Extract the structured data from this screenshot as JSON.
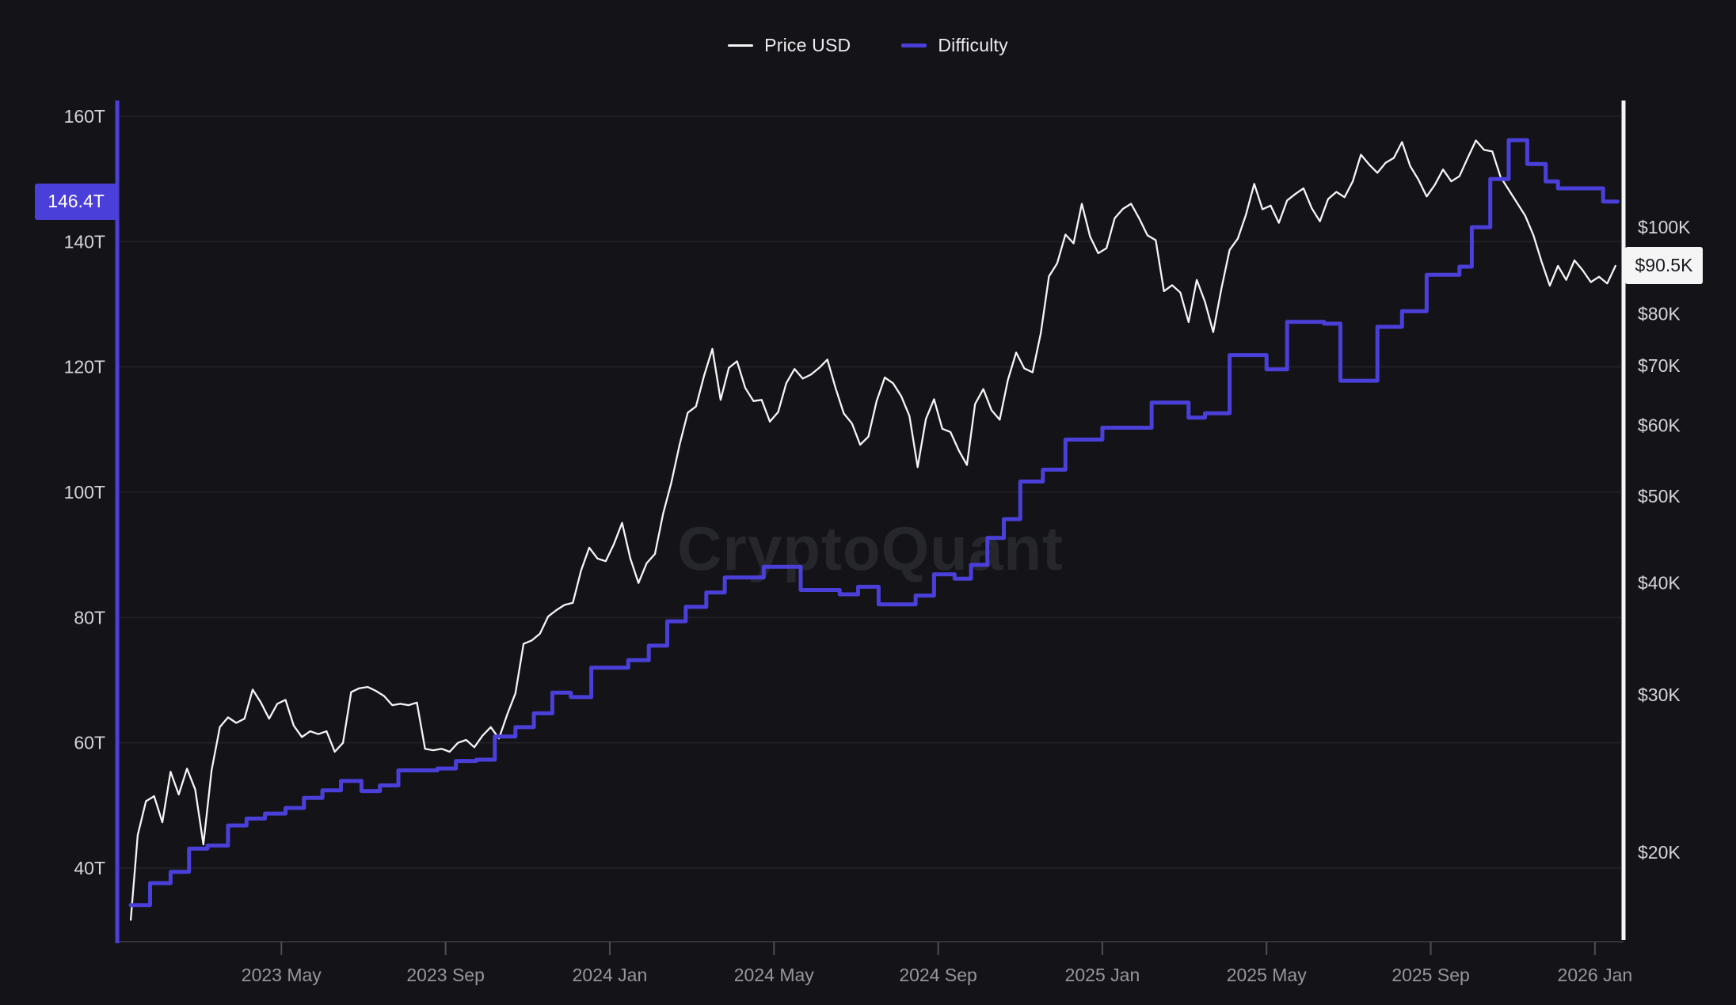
{
  "colors": {
    "background": "#141418",
    "gridline": "#222228",
    "axis_baseline": "#31313a",
    "tick_mark": "#4d4d55",
    "x_label": "#95959c",
    "y_label": "#d4d4d9",
    "price_line": "#f5f5f7",
    "difficulty_line": "#4b3fd9",
    "difficulty_badge_bg": "#4b3fd9",
    "difficulty_badge_text": "#ffffff",
    "price_badge_bg": "#f5f5f6",
    "price_badge_text": "#1b1b1f",
    "watermark": "#26262d"
  },
  "chart_data": {
    "type": "line",
    "watermark": "CryptoQuant",
    "legend_position": "top-center",
    "grid": "horizontal-left-axis-only",
    "x_axis": {
      "unit": "month-index from 2023 Jan",
      "range": [
        0,
        36.7
      ],
      "ticks": [
        {
          "t": 4,
          "label": "2023 May"
        },
        {
          "t": 8,
          "label": "2023 Sep"
        },
        {
          "t": 12,
          "label": "2024 Jan"
        },
        {
          "t": 16,
          "label": "2024 May"
        },
        {
          "t": 20,
          "label": "2024 Sep"
        },
        {
          "t": 24,
          "label": "2025 Jan"
        },
        {
          "t": 28,
          "label": "2025 May"
        },
        {
          "t": 32,
          "label": "2025 Sep"
        },
        {
          "t": 36,
          "label": "2026 Jan"
        }
      ]
    },
    "left_axis": {
      "title": "Difficulty",
      "scale": "linear",
      "unit": "T",
      "range": [
        28,
        162
      ],
      "ticks": [
        {
          "v": 160,
          "label": "160T"
        },
        {
          "v": 140,
          "label": "140T"
        },
        {
          "v": 120,
          "label": "120T"
        },
        {
          "v": 100,
          "label": "100T"
        },
        {
          "v": 80,
          "label": "80T"
        },
        {
          "v": 60,
          "label": "60T"
        },
        {
          "v": 40,
          "label": "40T"
        }
      ]
    },
    "right_axis": {
      "title": "Price USD",
      "scale": "log",
      "unit": "$K",
      "range": [
        16,
        135
      ],
      "ticks": [
        {
          "v": 100,
          "label": "$100K"
        },
        {
          "v": 80,
          "label": "$80K"
        },
        {
          "v": 70,
          "label": "$70K"
        },
        {
          "v": 60,
          "label": "$60K"
        },
        {
          "v": 50,
          "label": "$50K"
        },
        {
          "v": 40,
          "label": "$40K"
        },
        {
          "v": 30,
          "label": "$30K"
        },
        {
          "v": 20,
          "label": "$20K"
        }
      ]
    },
    "last_values": {
      "difficulty_label": "146.4T",
      "difficulty_value": 146.4,
      "price_label": "$90.5K",
      "price_value": 90.5
    },
    "series": [
      {
        "name": "Price USD",
        "axis": "right",
        "style": "line",
        "color": "#f5f5f7",
        "points": [
          [
            0.33,
            16.8
          ],
          [
            0.5,
            20.9
          ],
          [
            0.7,
            22.8
          ],
          [
            0.9,
            23.1
          ],
          [
            1.1,
            21.6
          ],
          [
            1.3,
            24.6
          ],
          [
            1.5,
            23.2
          ],
          [
            1.7,
            24.8
          ],
          [
            1.9,
            23.5
          ],
          [
            2.1,
            20.4
          ],
          [
            2.3,
            24.7
          ],
          [
            2.5,
            27.6
          ],
          [
            2.7,
            28.3
          ],
          [
            2.9,
            27.9
          ],
          [
            3.1,
            28.2
          ],
          [
            3.3,
            30.4
          ],
          [
            3.5,
            29.4
          ],
          [
            3.7,
            28.2
          ],
          [
            3.9,
            29.3
          ],
          [
            4.1,
            29.6
          ],
          [
            4.3,
            27.7
          ],
          [
            4.5,
            26.9
          ],
          [
            4.7,
            27.3
          ],
          [
            4.9,
            27.1
          ],
          [
            5.1,
            27.3
          ],
          [
            5.3,
            25.9
          ],
          [
            5.5,
            26.5
          ],
          [
            5.7,
            30.2
          ],
          [
            5.9,
            30.5
          ],
          [
            6.1,
            30.6
          ],
          [
            6.3,
            30.3
          ],
          [
            6.5,
            29.9
          ],
          [
            6.7,
            29.2
          ],
          [
            6.9,
            29.3
          ],
          [
            7.1,
            29.2
          ],
          [
            7.3,
            29.4
          ],
          [
            7.5,
            26.1
          ],
          [
            7.7,
            26.0
          ],
          [
            7.9,
            26.1
          ],
          [
            8.1,
            25.9
          ],
          [
            8.3,
            26.5
          ],
          [
            8.5,
            26.7
          ],
          [
            8.7,
            26.2
          ],
          [
            8.9,
            27.0
          ],
          [
            9.1,
            27.6
          ],
          [
            9.3,
            26.8
          ],
          [
            9.5,
            28.5
          ],
          [
            9.7,
            30.1
          ],
          [
            9.9,
            34.2
          ],
          [
            10.1,
            34.5
          ],
          [
            10.3,
            35.1
          ],
          [
            10.5,
            36.7
          ],
          [
            10.7,
            37.3
          ],
          [
            10.9,
            37.8
          ],
          [
            11.1,
            38.0
          ],
          [
            11.3,
            41.3
          ],
          [
            11.5,
            43.8
          ],
          [
            11.7,
            42.6
          ],
          [
            11.9,
            42.3
          ],
          [
            12.1,
            44.2
          ],
          [
            12.3,
            46.7
          ],
          [
            12.5,
            42.6
          ],
          [
            12.7,
            40.0
          ],
          [
            12.9,
            42.1
          ],
          [
            13.1,
            43.1
          ],
          [
            13.3,
            47.8
          ],
          [
            13.5,
            51.8
          ],
          [
            13.7,
            57.1
          ],
          [
            13.9,
            62.0
          ],
          [
            14.1,
            63.0
          ],
          [
            14.3,
            68.3
          ],
          [
            14.5,
            73.1
          ],
          [
            14.7,
            64.1
          ],
          [
            14.9,
            69.6
          ],
          [
            15.1,
            70.8
          ],
          [
            15.3,
            66.1
          ],
          [
            15.5,
            63.9
          ],
          [
            15.7,
            64.1
          ],
          [
            15.9,
            60.6
          ],
          [
            16.1,
            62.1
          ],
          [
            16.3,
            66.9
          ],
          [
            16.5,
            69.4
          ],
          [
            16.7,
            67.7
          ],
          [
            16.9,
            68.4
          ],
          [
            17.1,
            69.6
          ],
          [
            17.3,
            71.1
          ],
          [
            17.5,
            66.1
          ],
          [
            17.7,
            61.9
          ],
          [
            17.9,
            60.3
          ],
          [
            18.1,
            57.1
          ],
          [
            18.3,
            58.3
          ],
          [
            18.5,
            63.9
          ],
          [
            18.7,
            67.9
          ],
          [
            18.9,
            66.9
          ],
          [
            19.1,
            64.7
          ],
          [
            19.3,
            61.5
          ],
          [
            19.5,
            53.9
          ],
          [
            19.7,
            61.0
          ],
          [
            19.9,
            64.2
          ],
          [
            20.1,
            59.5
          ],
          [
            20.3,
            59.0
          ],
          [
            20.5,
            56.3
          ],
          [
            20.7,
            54.2
          ],
          [
            20.9,
            63.4
          ],
          [
            21.1,
            65.9
          ],
          [
            21.3,
            62.4
          ],
          [
            21.5,
            60.9
          ],
          [
            21.7,
            67.5
          ],
          [
            21.9,
            72.4
          ],
          [
            22.1,
            69.5
          ],
          [
            22.3,
            68.8
          ],
          [
            22.5,
            76.1
          ],
          [
            22.7,
            88.1
          ],
          [
            22.9,
            91.1
          ],
          [
            23.1,
            98.1
          ],
          [
            23.3,
            95.9
          ],
          [
            23.5,
            106.2
          ],
          [
            23.7,
            97.6
          ],
          [
            23.9,
            93.5
          ],
          [
            24.1,
            94.7
          ],
          [
            24.3,
            102.3
          ],
          [
            24.5,
            104.8
          ],
          [
            24.7,
            106.2
          ],
          [
            24.9,
            102.2
          ],
          [
            25.1,
            97.9
          ],
          [
            25.3,
            96.7
          ],
          [
            25.5,
            84.8
          ],
          [
            25.7,
            86.1
          ],
          [
            25.9,
            84.5
          ],
          [
            26.1,
            78.3
          ],
          [
            26.3,
            87.3
          ],
          [
            26.5,
            82.5
          ],
          [
            26.7,
            76.3
          ],
          [
            26.9,
            85.3
          ],
          [
            27.1,
            94.3
          ],
          [
            27.3,
            97.1
          ],
          [
            27.5,
            103.3
          ],
          [
            27.7,
            111.8
          ],
          [
            27.9,
            104.7
          ],
          [
            28.1,
            105.7
          ],
          [
            28.3,
            101.1
          ],
          [
            28.5,
            107.1
          ],
          [
            28.7,
            108.9
          ],
          [
            28.9,
            110.5
          ],
          [
            29.1,
            105.0
          ],
          [
            29.3,
            101.5
          ],
          [
            29.5,
            107.5
          ],
          [
            29.7,
            109.5
          ],
          [
            29.9,
            108.0
          ],
          [
            30.1,
            112.5
          ],
          [
            30.3,
            120.5
          ],
          [
            30.5,
            117.5
          ],
          [
            30.7,
            115.0
          ],
          [
            30.9,
            118.0
          ],
          [
            31.1,
            119.5
          ],
          [
            31.3,
            124.5
          ],
          [
            31.5,
            117.0
          ],
          [
            31.7,
            113.0
          ],
          [
            31.9,
            108.2
          ],
          [
            32.1,
            111.5
          ],
          [
            32.3,
            116.0
          ],
          [
            32.5,
            112.5
          ],
          [
            32.7,
            114.0
          ],
          [
            32.9,
            119.5
          ],
          [
            33.1,
            125.0
          ],
          [
            33.3,
            122.0
          ],
          [
            33.5,
            121.5
          ],
          [
            33.7,
            113.8
          ],
          [
            33.9,
            110.1
          ],
          [
            34.1,
            106.5
          ],
          [
            34.3,
            103.0
          ],
          [
            34.5,
            98.0
          ],
          [
            34.7,
            91.5
          ],
          [
            34.9,
            86.0
          ],
          [
            35.1,
            90.5
          ],
          [
            35.3,
            87.3
          ],
          [
            35.5,
            91.8
          ],
          [
            35.7,
            89.5
          ],
          [
            35.9,
            86.8
          ],
          [
            36.1,
            88.0
          ],
          [
            36.3,
            86.5
          ],
          [
            36.5,
            90.5
          ]
        ]
      },
      {
        "name": "Difficulty",
        "axis": "left",
        "style": "step-after",
        "color": "#4b3fd9",
        "points": [
          [
            0.33,
            34.1
          ],
          [
            0.8,
            37.6
          ],
          [
            1.3,
            39.4
          ],
          [
            1.75,
            43.1
          ],
          [
            2.2,
            43.6
          ],
          [
            2.7,
            46.8
          ],
          [
            3.15,
            47.9
          ],
          [
            3.6,
            48.7
          ],
          [
            4.1,
            49.6
          ],
          [
            4.55,
            51.2
          ],
          [
            5.0,
            52.4
          ],
          [
            5.45,
            53.9
          ],
          [
            5.95,
            52.3
          ],
          [
            6.4,
            53.2
          ],
          [
            6.85,
            55.6
          ],
          [
            7.8,
            55.9
          ],
          [
            8.25,
            57.1
          ],
          [
            8.75,
            57.3
          ],
          [
            9.2,
            61.0
          ],
          [
            9.7,
            62.5
          ],
          [
            10.15,
            64.7
          ],
          [
            10.6,
            68.0
          ],
          [
            11.05,
            67.3
          ],
          [
            11.55,
            72.0
          ],
          [
            12.45,
            73.2
          ],
          [
            12.95,
            75.5
          ],
          [
            13.4,
            79.4
          ],
          [
            13.85,
            81.7
          ],
          [
            14.35,
            84.0
          ],
          [
            14.8,
            86.4
          ],
          [
            15.75,
            88.1
          ],
          [
            16.65,
            84.4
          ],
          [
            17.6,
            83.7
          ],
          [
            18.05,
            84.9
          ],
          [
            18.55,
            82.1
          ],
          [
            19.45,
            83.5
          ],
          [
            19.9,
            86.9
          ],
          [
            20.4,
            86.2
          ],
          [
            20.8,
            88.4
          ],
          [
            21.2,
            92.7
          ],
          [
            21.6,
            95.7
          ],
          [
            22.0,
            101.7
          ],
          [
            22.55,
            103.6
          ],
          [
            23.1,
            108.4
          ],
          [
            24.0,
            110.3
          ],
          [
            25.2,
            114.3
          ],
          [
            26.1,
            111.9
          ],
          [
            26.5,
            112.6
          ],
          [
            27.1,
            121.9
          ],
          [
            28.0,
            119.6
          ],
          [
            28.5,
            127.2
          ],
          [
            29.4,
            126.9
          ],
          [
            29.8,
            117.8
          ],
          [
            30.7,
            126.4
          ],
          [
            31.3,
            128.9
          ],
          [
            31.9,
            134.7
          ],
          [
            32.7,
            136.0
          ],
          [
            33.0,
            142.3
          ],
          [
            33.45,
            150.0
          ],
          [
            33.9,
            156.2
          ],
          [
            34.35,
            152.4
          ],
          [
            34.8,
            149.6
          ],
          [
            35.1,
            148.5
          ],
          [
            36.2,
            146.4
          ],
          [
            36.55,
            146.4
          ]
        ]
      }
    ]
  }
}
